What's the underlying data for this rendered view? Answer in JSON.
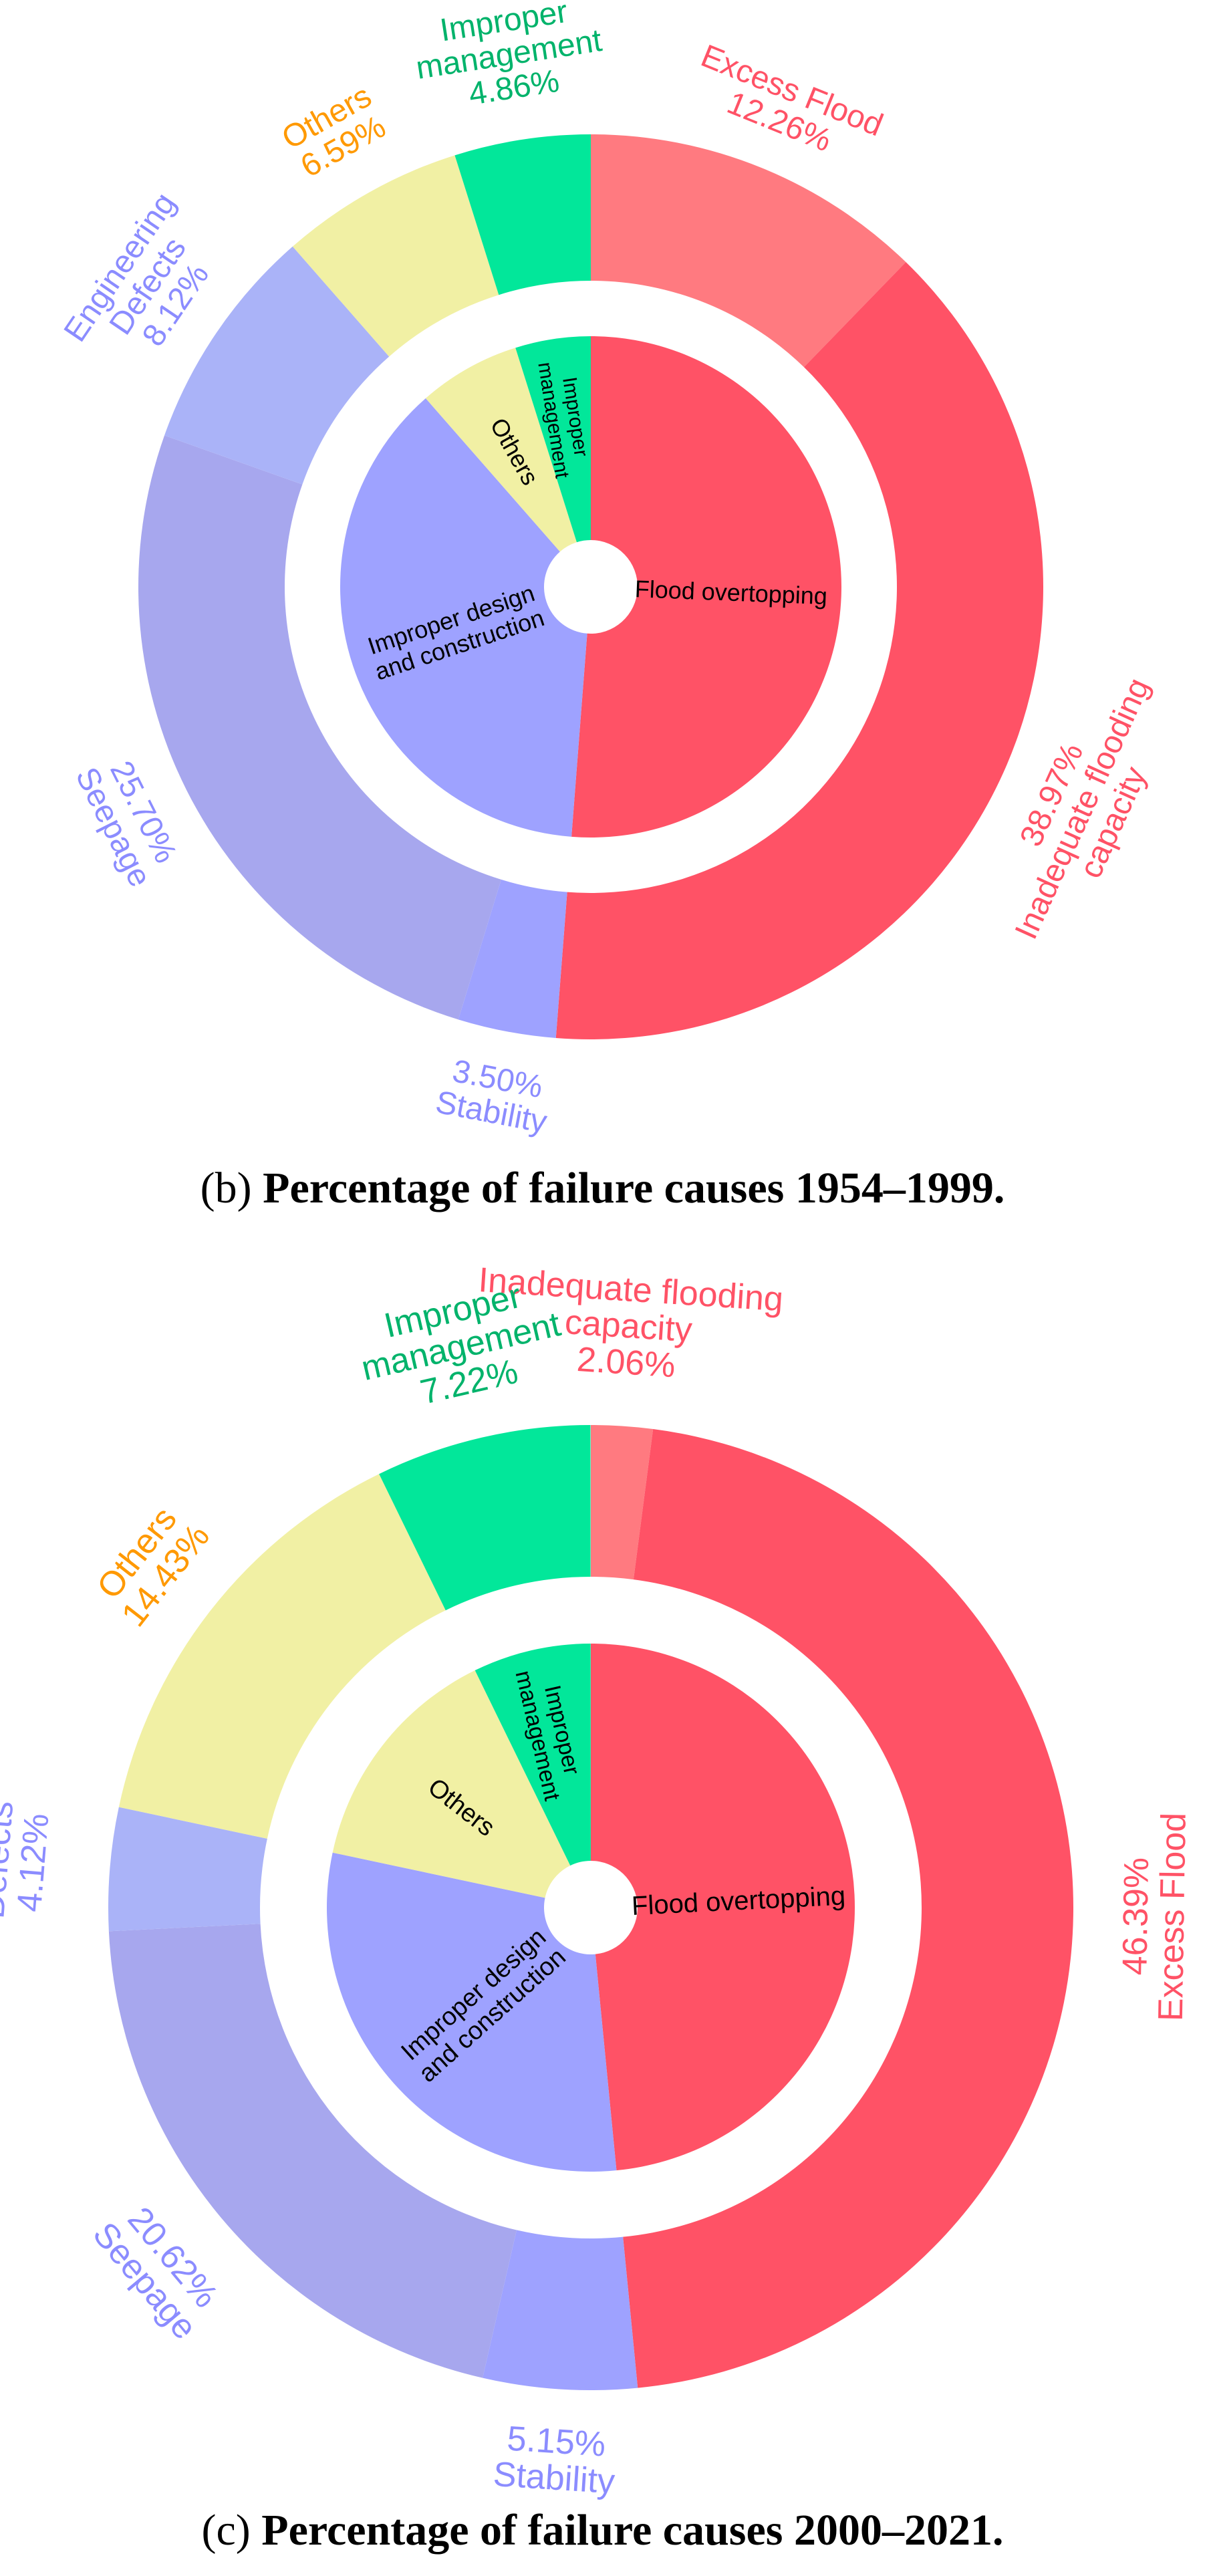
{
  "colors": {
    "flood_inner": "#ff5266",
    "excess_flood": "#ff7a80",
    "inadequate": "#ff5266",
    "stability": "#9ea2ff",
    "seepage": "#a7a7ee",
    "engineering": "#aab3f8",
    "others": "#f1f0a4",
    "management": "#02e79a",
    "design": "#9ea2ff",
    "label_red": "#ff5266",
    "label_blue": "#8b8cff",
    "label_orange": "#ff9900",
    "label_green": "#00b36b"
  },
  "figures": [
    {
      "caption_letter": "(b)",
      "caption_text": "Percentage of failure causes 1954–1999."
    },
    {
      "caption_letter": "(c)",
      "caption_text": "Percentage of failure causes 2000–2021."
    }
  ],
  "chart_data": [
    {
      "type": "pie",
      "subtype": "nested-donut",
      "title": "Percentage of failure causes 1954–1999.",
      "inner": [
        {
          "label": "Flood overtopping",
          "value": 51.23,
          "color_key": "flood_inner"
        },
        {
          "label": "Improper design and construction",
          "value": 37.32,
          "color_key": "design"
        },
        {
          "label": "Others",
          "value": 6.59,
          "color_key": "others"
        },
        {
          "label": "Improper management",
          "value": 4.86,
          "color_key": "management"
        }
      ],
      "outer": [
        {
          "name": "Excess Flood",
          "value": 12.26,
          "pct": "12.26%",
          "color_key": "excess_flood",
          "label_color": "label_red"
        },
        {
          "name": "Inadequate flooding capacity",
          "value": 38.97,
          "pct": "38.97%",
          "color_key": "inadequate",
          "label_color": "label_red"
        },
        {
          "name": "Stability",
          "value": 3.5,
          "pct": "3.50%",
          "color_key": "stability",
          "label_color": "label_blue"
        },
        {
          "name": "Seepage",
          "value": 25.7,
          "pct": "25.70%",
          "color_key": "seepage",
          "label_color": "label_blue"
        },
        {
          "name": "Engineering Defects",
          "value": 8.12,
          "pct": "8.12%",
          "color_key": "engineering",
          "label_color": "label_blue"
        },
        {
          "name": "Others",
          "value": 6.59,
          "pct": "6.59%",
          "color_key": "others",
          "label_color": "label_orange"
        },
        {
          "name": "Improper management",
          "value": 4.86,
          "pct": "4.86%",
          "color_key": "management",
          "label_color": "label_green"
        }
      ]
    },
    {
      "type": "pie",
      "subtype": "nested-donut",
      "title": "Percentage of failure causes 2000–2021.",
      "inner": [
        {
          "label": "Flood overtopping",
          "value": 48.45,
          "color_key": "flood_inner"
        },
        {
          "label": "Improper design and construction",
          "value": 29.89,
          "color_key": "design"
        },
        {
          "label": "Others",
          "value": 14.43,
          "color_key": "others"
        },
        {
          "label": "Improper management",
          "value": 7.22,
          "color_key": "management"
        }
      ],
      "outer": [
        {
          "name": "Inadequate flooding capacity",
          "value": 2.06,
          "pct": "2.06%",
          "color_key": "excess_flood",
          "label_color": "label_red"
        },
        {
          "name": "Excess Flood",
          "value": 46.39,
          "pct": "46.39%",
          "color_key": "inadequate",
          "label_color": "label_red"
        },
        {
          "name": "Stability",
          "value": 5.15,
          "pct": "5.15%",
          "color_key": "stability",
          "label_color": "label_blue"
        },
        {
          "name": "Seepage",
          "value": 20.62,
          "pct": "20.62%",
          "color_key": "seepage",
          "label_color": "label_blue"
        },
        {
          "name": "Engineering Defects",
          "value": 4.12,
          "pct": "4.12%",
          "color_key": "engineering",
          "label_color": "label_blue"
        },
        {
          "name": "Others",
          "value": 14.43,
          "pct": "14.43%",
          "color_key": "others",
          "label_color": "label_orange"
        },
        {
          "name": "Improper management",
          "value": 7.22,
          "pct": "7.22%",
          "color_key": "management",
          "label_color": "label_green"
        }
      ]
    }
  ]
}
